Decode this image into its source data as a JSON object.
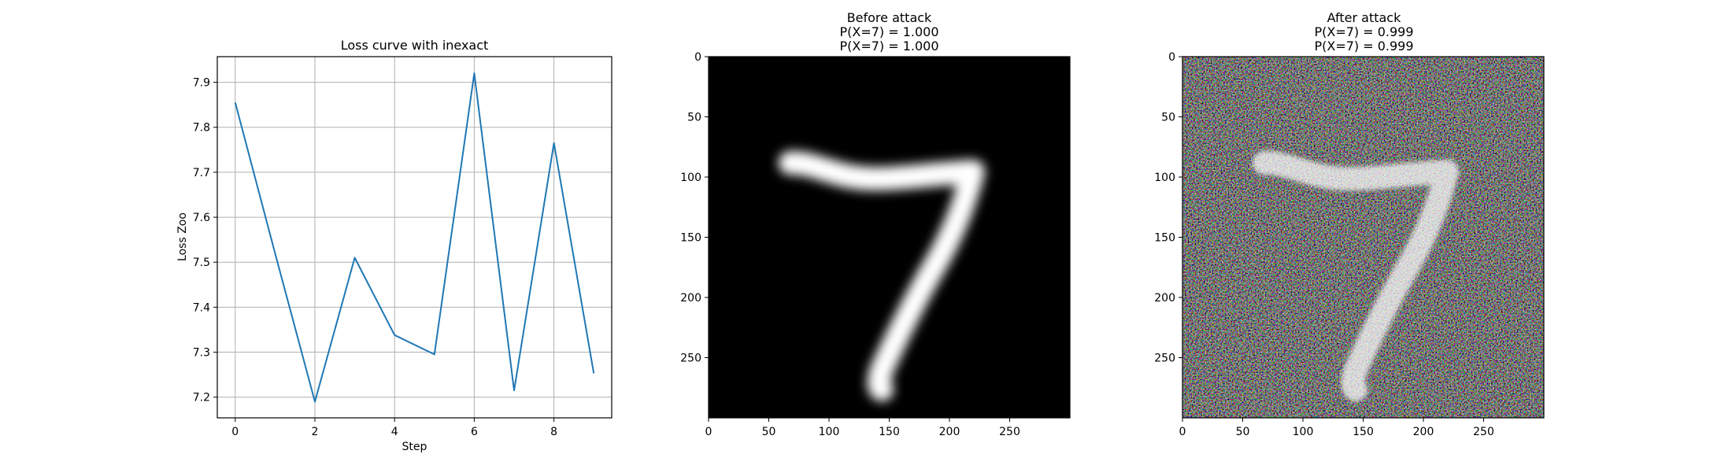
{
  "chart_data": [
    {
      "type": "line",
      "title": "Loss curve with inexact",
      "xlabel": "Step",
      "ylabel": "Loss Zoo",
      "x": [
        0,
        1,
        2,
        3,
        4,
        5,
        6,
        7,
        8,
        9
      ],
      "series": [
        {
          "values": [
            7.855,
            7.52,
            7.19,
            7.51,
            7.338,
            7.295,
            7.92,
            7.215,
            7.765,
            7.253
          ]
        }
      ],
      "xlim": [
        -0.45,
        9.45
      ],
      "ylim": [
        7.154,
        7.957
      ],
      "xticks": [
        0,
        2,
        4,
        6,
        8
      ],
      "yticks": [
        7.2,
        7.3,
        7.4,
        7.5,
        7.6,
        7.7,
        7.8,
        7.9
      ],
      "grid": true,
      "colors": {
        "line": "#1f77b4",
        "grid": "#b0b0b0"
      }
    },
    {
      "type": "image",
      "title": "Before attack\nP(X=7) = 1.000\nP(X=7) = 1.000",
      "xticks": [
        0,
        50,
        100,
        150,
        200,
        250
      ],
      "yticks": [
        0,
        50,
        100,
        150,
        200,
        250
      ],
      "extent": [
        0,
        300
      ],
      "content": "grayscale handwritten digit 7 on black background"
    },
    {
      "type": "image",
      "title": "After attack\nP(X=7) = 0.999\nP(X=7) = 0.999",
      "xticks": [
        0,
        50,
        100,
        150,
        200,
        250
      ],
      "yticks": [
        0,
        50,
        100,
        150,
        200,
        250
      ],
      "extent": [
        0,
        300
      ],
      "content": "handwritten digit 7 with colored adversarial noise"
    }
  ],
  "subplot2": {
    "title_lines": [
      "Before attack",
      "P(X=7) = 1.000",
      "P(X=7) = 1.000"
    ]
  },
  "subplot3": {
    "title_lines": [
      "After attack",
      "P(X=7) = 0.999",
      "P(X=7) = 0.999"
    ]
  }
}
